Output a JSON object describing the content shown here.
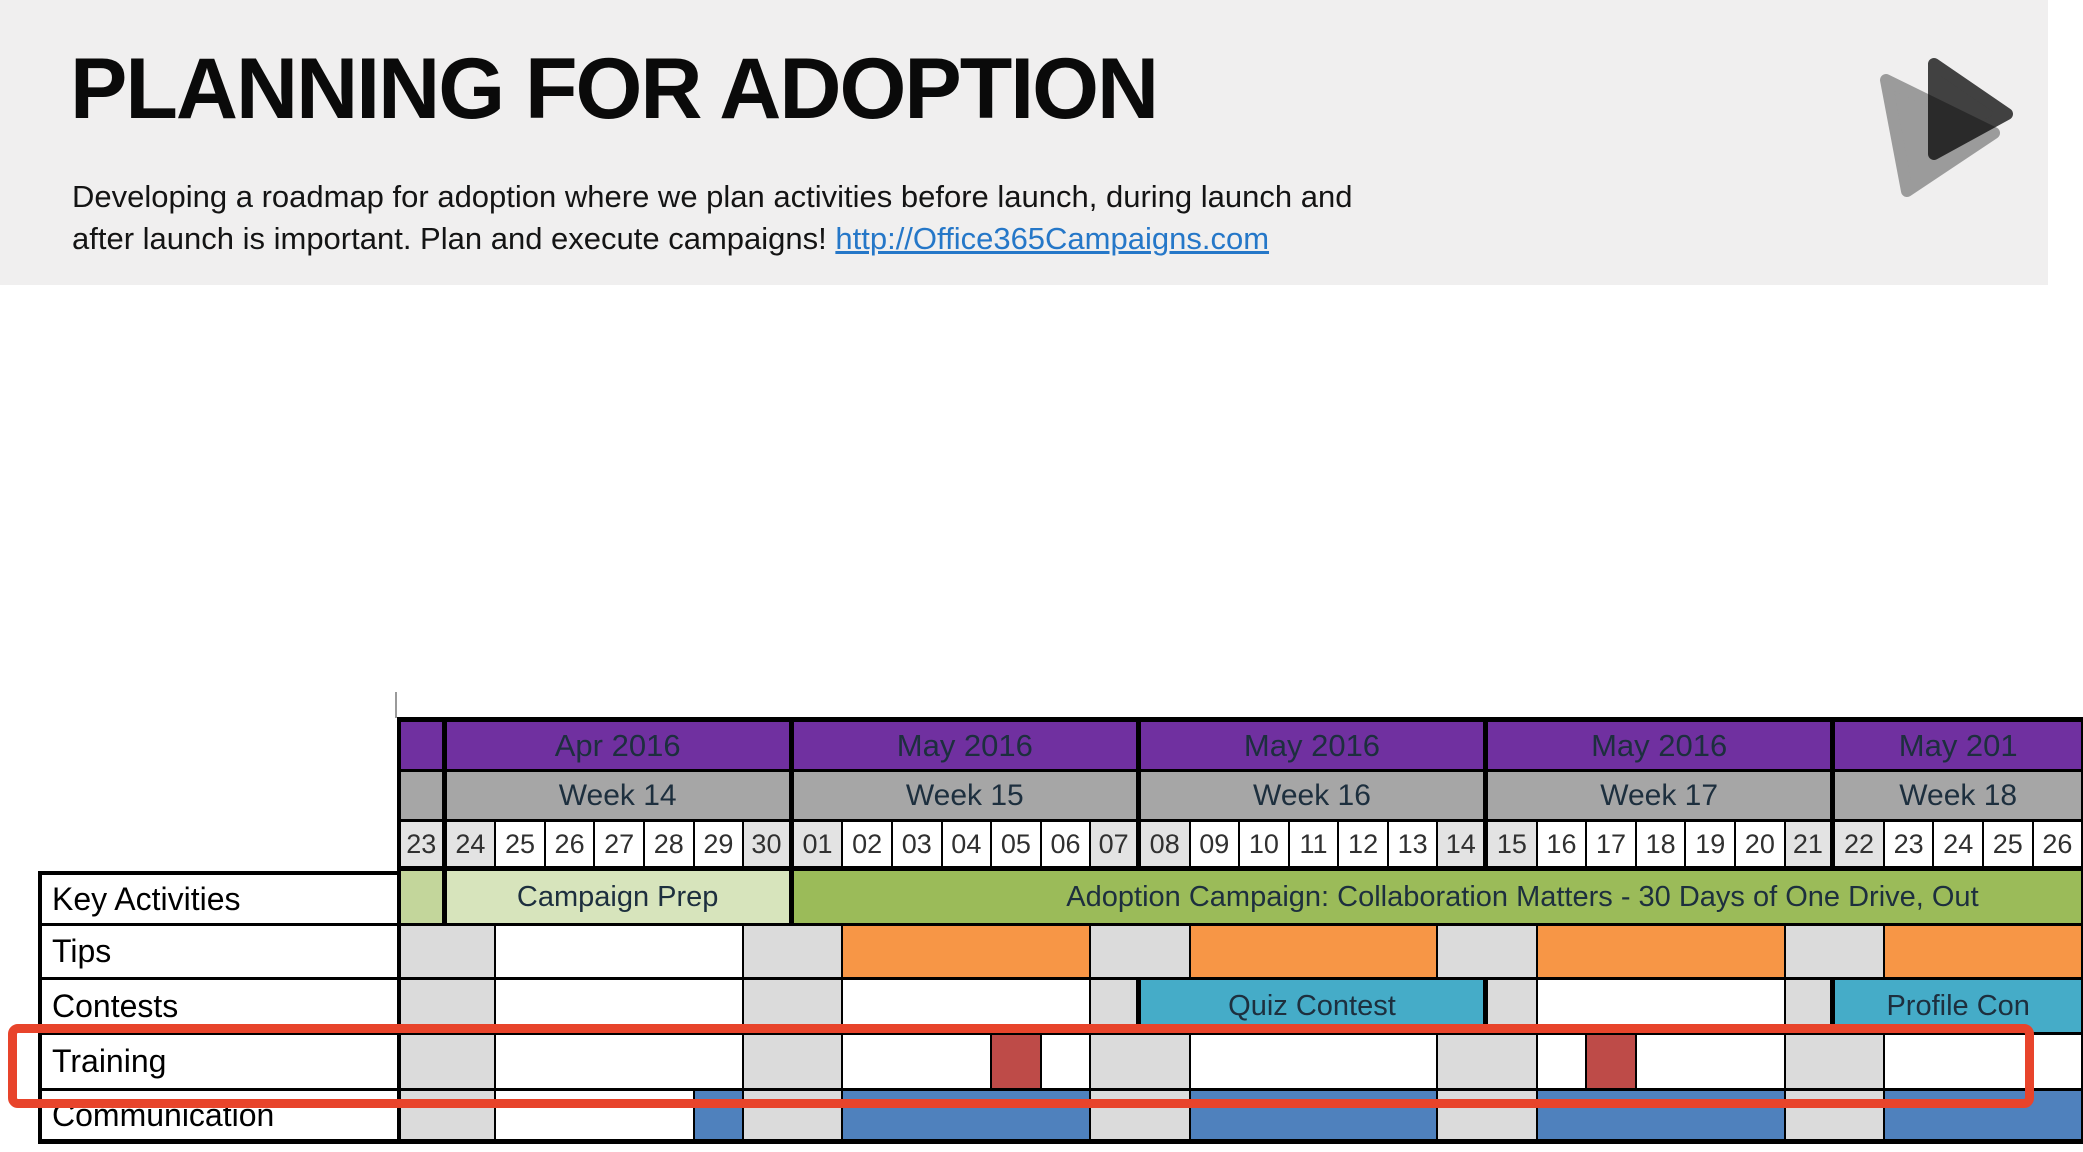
{
  "header": {
    "title": "PLANNING FOR ADOPTION",
    "subtitle_line1": "Developing a roadmap for adoption where we plan activities before launch, during launch and",
    "subtitle_line2": "after launch is important. Plan and execute campaigns! ",
    "link_text": "http://Office365Campaigns.com"
  },
  "colors": {
    "header_bg": "#F0EFEF",
    "link": "#2577C8",
    "purple": "#7030A0",
    "week_gray": "#A6A6A6",
    "weekend_light": "#E3E3E3",
    "weekend": "#DBDBDB",
    "white": "#FFFFFF",
    "green_mid": "#C3D69B",
    "green_light": "#D7E4BC",
    "green": "#9BBB59",
    "orange": "#F79646",
    "teal": "#45ACC8",
    "red": "#BE4B48",
    "blue": "#4F81BD",
    "highlight": "#E8442B",
    "logo_back": "#9B9B9B",
    "logo_front": "#454545"
  },
  "gantt": {
    "group_ends": [
      0,
      7,
      14,
      21,
      28
    ],
    "months": [
      {
        "label": "",
        "span": 1
      },
      {
        "label": "Apr 2016",
        "span": 7
      },
      {
        "label": "May 2016",
        "span": 7
      },
      {
        "label": "May 2016",
        "span": 7
      },
      {
        "label": "May 2016",
        "span": 7
      },
      {
        "label": "May 201",
        "span": 5
      }
    ],
    "weeks": [
      {
        "label": "",
        "span": 1
      },
      {
        "label": "Week 14",
        "span": 7
      },
      {
        "label": "Week 15",
        "span": 7
      },
      {
        "label": "Week 16",
        "span": 7
      },
      {
        "label": "Week 17",
        "span": 7
      },
      {
        "label": "Week 18",
        "span": 5
      }
    ],
    "days": [
      {
        "n": "23",
        "we": true
      },
      {
        "n": "24",
        "we": true
      },
      {
        "n": "25"
      },
      {
        "n": "26"
      },
      {
        "n": "27"
      },
      {
        "n": "28"
      },
      {
        "n": "29"
      },
      {
        "n": "30",
        "we": true
      },
      {
        "n": "01",
        "we": true
      },
      {
        "n": "02"
      },
      {
        "n": "03"
      },
      {
        "n": "04"
      },
      {
        "n": "05"
      },
      {
        "n": "06"
      },
      {
        "n": "07",
        "we": true
      },
      {
        "n": "08",
        "we": true
      },
      {
        "n": "09"
      },
      {
        "n": "10"
      },
      {
        "n": "11"
      },
      {
        "n": "12"
      },
      {
        "n": "13"
      },
      {
        "n": "14",
        "we": true
      },
      {
        "n": "15",
        "we": true
      },
      {
        "n": "16"
      },
      {
        "n": "17"
      },
      {
        "n": "18"
      },
      {
        "n": "19"
      },
      {
        "n": "20"
      },
      {
        "n": "21",
        "we": true
      },
      {
        "n": "22",
        "we": true
      },
      {
        "n": "23"
      },
      {
        "n": "24"
      },
      {
        "n": "25"
      },
      {
        "n": "26"
      }
    ],
    "rows": [
      {
        "label": "Key Activities",
        "segments": [
          {
            "span": 1,
            "fill": "green_mid"
          },
          {
            "span": 7,
            "fill": "green_light",
            "label": "Campaign Prep"
          },
          {
            "span": 26,
            "fill": "green",
            "label": "Adoption Campaign: Collaboration Matters - 30 Days of One Drive, Out"
          }
        ]
      },
      {
        "label": "Tips",
        "segments": [
          {
            "span": 2,
            "fill": "weekend"
          },
          {
            "span": 5
          },
          {
            "span": 2,
            "fill": "weekend"
          },
          {
            "span": 5,
            "fill": "orange"
          },
          {
            "span": 2,
            "fill": "weekend"
          },
          {
            "span": 5,
            "fill": "orange"
          },
          {
            "span": 2,
            "fill": "weekend"
          },
          {
            "span": 5,
            "fill": "orange"
          },
          {
            "span": 2,
            "fill": "weekend"
          },
          {
            "span": 4,
            "fill": "orange"
          }
        ]
      },
      {
        "label": "Contests",
        "segments": [
          {
            "span": 2,
            "fill": "weekend"
          },
          {
            "span": 5
          },
          {
            "span": 2,
            "fill": "weekend"
          },
          {
            "span": 5
          },
          {
            "span": 1,
            "fill": "weekend"
          },
          {
            "span": 7,
            "fill": "teal",
            "label": "Quiz Contest"
          },
          {
            "span": 1,
            "fill": "weekend"
          },
          {
            "span": 5
          },
          {
            "span": 1,
            "fill": "weekend"
          },
          {
            "span": 5,
            "fill": "teal",
            "label": "Profile Con"
          }
        ]
      },
      {
        "label": "Training",
        "segments": [
          {
            "span": 2,
            "fill": "weekend"
          },
          {
            "span": 5
          },
          {
            "span": 2,
            "fill": "weekend"
          },
          {
            "span": 3
          },
          {
            "span": 1,
            "fill": "red"
          },
          {
            "span": 1
          },
          {
            "span": 2,
            "fill": "weekend"
          },
          {
            "span": 5
          },
          {
            "span": 2,
            "fill": "weekend"
          },
          {
            "span": 1
          },
          {
            "span": 1,
            "fill": "red"
          },
          {
            "span": 3
          },
          {
            "span": 2,
            "fill": "weekend"
          },
          {
            "span": 4
          }
        ]
      },
      {
        "label": "Communication",
        "segments": [
          {
            "span": 2,
            "fill": "weekend"
          },
          {
            "span": 4
          },
          {
            "span": 1,
            "fill": "blue"
          },
          {
            "span": 2,
            "fill": "weekend"
          },
          {
            "span": 5,
            "fill": "blue"
          },
          {
            "span": 2,
            "fill": "weekend"
          },
          {
            "span": 5,
            "fill": "blue"
          },
          {
            "span": 2,
            "fill": "weekend"
          },
          {
            "span": 5,
            "fill": "blue"
          },
          {
            "span": 2,
            "fill": "weekend"
          },
          {
            "span": 4,
            "fill": "blue"
          }
        ]
      }
    ]
  }
}
